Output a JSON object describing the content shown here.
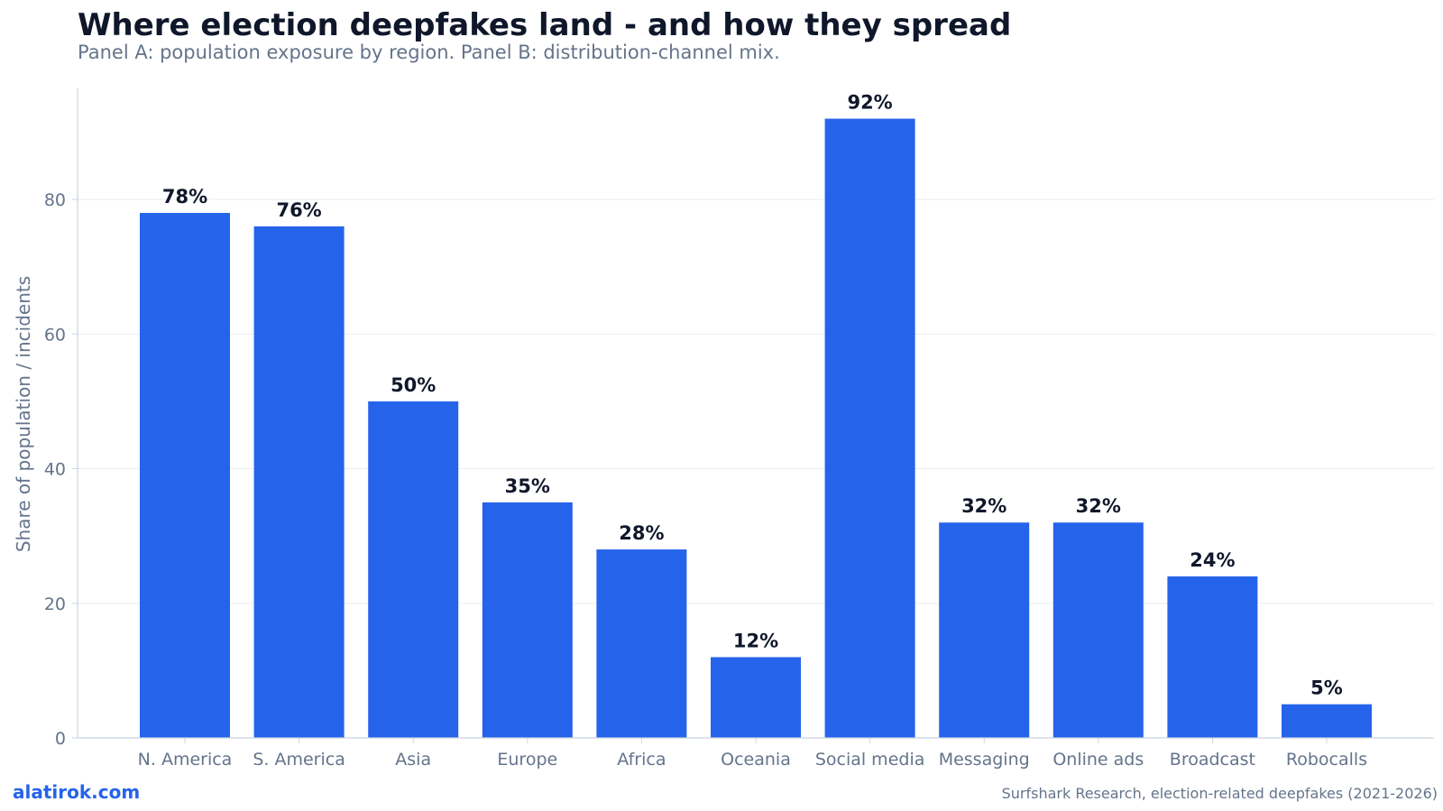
{
  "header": {
    "title": "Where election deepfakes land - and how they spread",
    "subtitle": "Panel A: population exposure by region. Panel B: distribution-channel mix."
  },
  "footer": {
    "brand": "alatirok.com",
    "source": "Surfshark Research, election-related deepfakes (2021-2026)"
  },
  "colors": {
    "bar": "#2563eb",
    "grid": "#e8edf3",
    "axis": "#cbd5e1",
    "text_dark": "#0f172a",
    "text_muted": "#64748b"
  },
  "chart_data": {
    "type": "bar",
    "title": "Where election deepfakes land - and how they spread",
    "subtitle": "Panel A: population exposure by region. Panel B: distribution-channel mix.",
    "xlabel": "",
    "ylabel": "Share of population / incidents",
    "ylim": [
      0,
      96.5
    ],
    "yticks": [
      0,
      20,
      40,
      60,
      80
    ],
    "grid": "horizontal",
    "categories": [
      "N. America",
      "S. America",
      "Asia",
      "Europe",
      "Africa",
      "Oceania",
      "Social media",
      "Messaging",
      "Online ads",
      "Broadcast",
      "Robocalls"
    ],
    "values": [
      78,
      76,
      50,
      35,
      28,
      12,
      92,
      32,
      32,
      24,
      5
    ],
    "data_labels": [
      "78%",
      "76%",
      "50%",
      "35%",
      "28%",
      "12%",
      "92%",
      "32%",
      "32%",
      "24%",
      "5%"
    ]
  }
}
